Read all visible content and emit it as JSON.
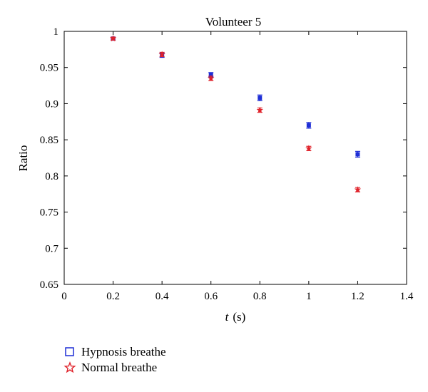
{
  "chart_data": {
    "type": "scatter",
    "title": "Volunteer 5",
    "xlabel_italic": "t",
    "xlabel_unit": "(s)",
    "ylabel": "Ratio",
    "xlim": [
      0,
      1.4
    ],
    "ylim": [
      0.65,
      1
    ],
    "xticks": [
      "0",
      "0.2",
      "0.4",
      "0.6",
      "0.8",
      "1",
      "1.2",
      "1.4"
    ],
    "xtick_values": [
      0,
      0.2,
      0.4,
      0.6,
      0.8,
      1.0,
      1.2,
      1.4
    ],
    "yticks": [
      "0.65",
      "0.7",
      "0.75",
      "0.8",
      "0.85",
      "0.9",
      "0.95",
      "1"
    ],
    "ytick_values": [
      0.65,
      0.7,
      0.75,
      0.8,
      0.85,
      0.9,
      0.95,
      1.0
    ],
    "grid": false,
    "legend_position": "bottom-left",
    "series": [
      {
        "name": "Hypnosis breathe",
        "marker": "square",
        "color": "#1f2fd6",
        "x": [
          0.2,
          0.4,
          0.6,
          0.8,
          1.0,
          1.2
        ],
        "y": [
          0.99,
          0.967,
          0.94,
          0.908,
          0.87,
          0.83
        ],
        "err": [
          0.002,
          0.003,
          0.003,
          0.004,
          0.004,
          0.004
        ]
      },
      {
        "name": "Normal breathe",
        "marker": "star",
        "color": "#e0232b",
        "x": [
          0.2,
          0.4,
          0.6,
          0.8,
          1.0,
          1.2
        ],
        "y": [
          0.99,
          0.968,
          0.935,
          0.891,
          0.838,
          0.781
        ],
        "err": [
          0.002,
          0.003,
          0.003,
          0.003,
          0.003,
          0.003
        ]
      }
    ]
  }
}
